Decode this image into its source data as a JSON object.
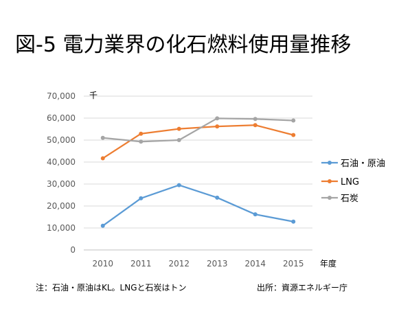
{
  "title": "図-5 電力業界の化石燃料使用量推移",
  "note": "注：石油・原油はKL。LNGと石炭はトン",
  "source": "出所：資源エネルギー庁",
  "chart_data": {
    "type": "line",
    "title": "図-5 電力業界の化石燃料使用量推移",
    "ylabel": "千",
    "xlabel": "年度",
    "categories": [
      "2010",
      "2011",
      "2012",
      "2013",
      "2014",
      "2015"
    ],
    "ylim": [
      0,
      70000
    ],
    "yticks": [
      0,
      10000,
      20000,
      30000,
      40000,
      50000,
      60000,
      70000
    ],
    "ytick_labels": [
      "0",
      "10,000",
      "20,000",
      "30,000",
      "40,000",
      "50,000",
      "60,000",
      "70,000"
    ],
    "grid": true,
    "legend_position": "right",
    "series": [
      {
        "name": "石油・原油",
        "color": "#5B9BD5",
        "values": [
          11000,
          23500,
          29500,
          23800,
          16200,
          12900
        ]
      },
      {
        "name": "LNG",
        "color": "#ED7D31",
        "values": [
          41700,
          52900,
          55100,
          56200,
          56800,
          52300
        ]
      },
      {
        "name": "石炭",
        "color": "#A5A5A5",
        "values": [
          51000,
          49300,
          50000,
          59900,
          59600,
          58900
        ]
      }
    ]
  }
}
